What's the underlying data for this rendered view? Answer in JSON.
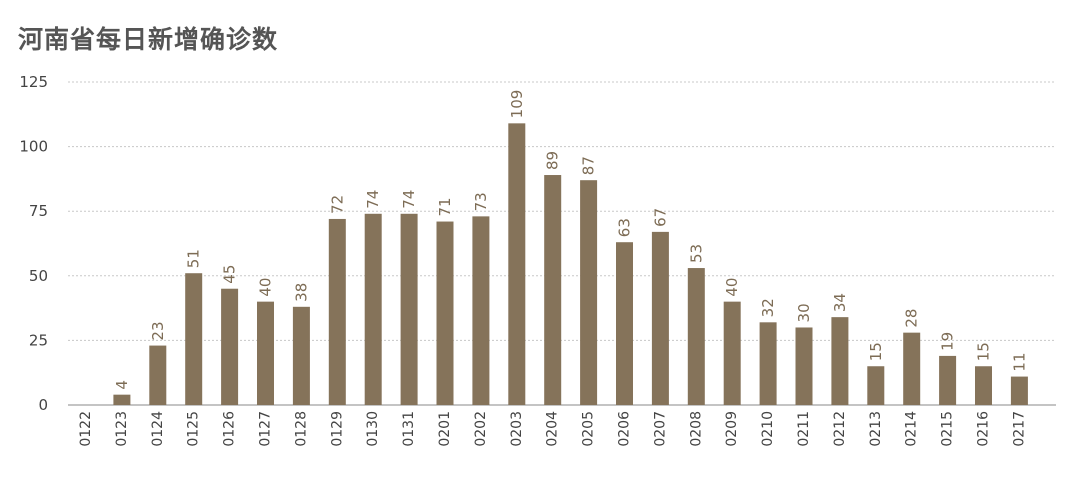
{
  "chart_data": {
    "type": "bar",
    "title": "河南省每日新增确诊数",
    "xlabel": "",
    "ylabel": "",
    "ylim": [
      0,
      125
    ],
    "yticks": [
      0,
      25,
      50,
      75,
      100,
      125
    ],
    "grid": true,
    "categories": [
      "0122",
      "0123",
      "0124",
      "0125",
      "0126",
      "0127",
      "0128",
      "0129",
      "0130",
      "0131",
      "0201",
      "0202",
      "0203",
      "0204",
      "0205",
      "0206",
      "0207",
      "0208",
      "0209",
      "0210",
      "0211",
      "0212",
      "0213",
      "0214",
      "0215",
      "0216",
      "0217"
    ],
    "values": [
      0,
      4,
      23,
      51,
      45,
      40,
      38,
      72,
      74,
      74,
      71,
      73,
      109,
      89,
      87,
      63,
      67,
      53,
      40,
      32,
      30,
      34,
      15,
      28,
      19,
      15,
      11
    ],
    "data_labels_shown_for_zero": false,
    "bar_color": "#85735a"
  }
}
